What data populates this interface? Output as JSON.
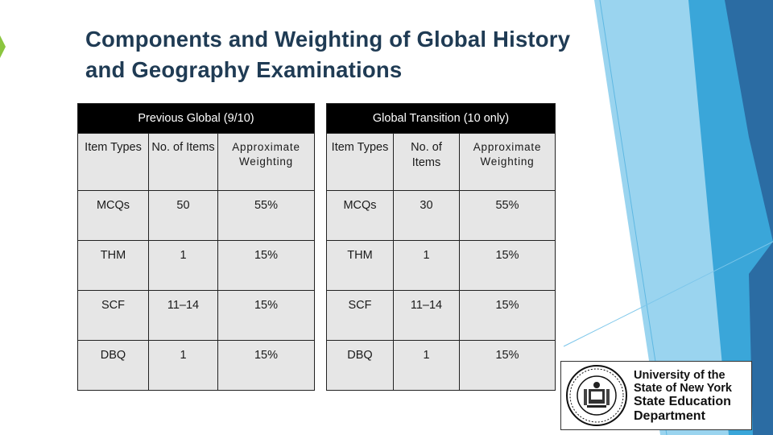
{
  "slide": {
    "title": "Components and Weighting of Global History and Geography Examinations"
  },
  "tables": [
    {
      "header": "Previous Global (9/10)",
      "columns": [
        "Item Types",
        "No. of Items",
        "Approximate Weighting"
      ],
      "rows": [
        [
          "MCQs",
          "50",
          "55%"
        ],
        [
          "THM",
          "1",
          "15%"
        ],
        [
          "SCF",
          "11–14",
          "15%"
        ],
        [
          "DBQ",
          "1",
          "15%"
        ]
      ]
    },
    {
      "header": "Global Transition (10 only)",
      "columns": [
        "Item Types",
        "No. of Items",
        "Approximate Weighting"
      ],
      "rows": [
        [
          "MCQs",
          "30",
          "55%"
        ],
        [
          "THM",
          "1",
          "15%"
        ],
        [
          "SCF",
          "11–14",
          "15%"
        ],
        [
          "DBQ",
          "1",
          "15%"
        ]
      ]
    }
  ],
  "logo": {
    "lines": [
      "University of the",
      "State of New York",
      "State Education",
      "Department"
    ]
  },
  "colors": {
    "title": "#1f3b54",
    "accent_green": "#8bc53f",
    "teal_light": "#9ad4ef",
    "teal_mid": "#3aa6d9",
    "teal_dark": "#2b6ca3"
  }
}
